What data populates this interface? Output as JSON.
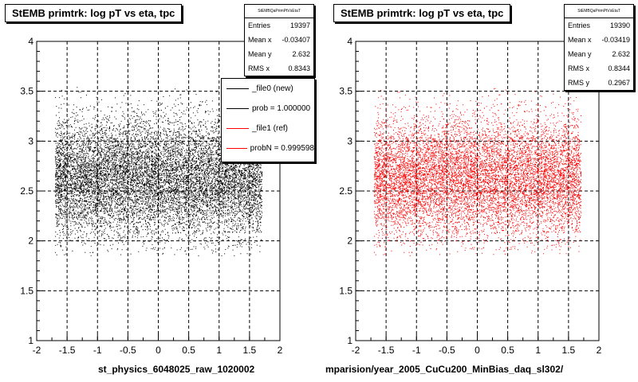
{
  "footer_text": "",
  "chart_data": [
    {
      "type": "scatter",
      "title": "StEMB primtrk: log pT vs eta, tpc",
      "xlabel": "st_physics_6048025_raw_1020002",
      "ylabel": "",
      "xlim": [
        -2,
        2
      ],
      "ylim": [
        1,
        4
      ],
      "xticks": [
        "-2",
        "-1.5",
        "-1",
        "-0.5",
        "0",
        "0.5",
        "1",
        "1.5",
        "2"
      ],
      "yticks": [
        "1",
        "1.5",
        "2",
        "2.5",
        "3",
        "3.5",
        "4"
      ],
      "grid": true,
      "color": "#000000",
      "stats": {
        "name": "StEMBQaPrimPtVsEtaT",
        "rows": [
          {
            "label": "Entries",
            "value": "19397"
          },
          {
            "label": "Mean x",
            "value": "-0.03407"
          },
          {
            "label": "Mean y",
            "value": "2.632"
          },
          {
            "label": "RMS x",
            "value": "0.8343"
          }
        ]
      },
      "distribution": {
        "x_range": [
          -1.7,
          1.7
        ],
        "y_mean": 2.632,
        "y_rms": 0.297,
        "y_range": [
          1.85,
          3.55
        ],
        "entries": 19397
      },
      "legend": [
        {
          "label": "_file0 (new)",
          "color": "#000000"
        },
        {
          "label": "prob = 1.000000",
          "color": "#000000"
        },
        {
          "label": "_file1 (ref)",
          "color": "#ff0000"
        },
        {
          "label": "probN = 0.999598",
          "color": "#ff0000"
        }
      ]
    },
    {
      "type": "scatter",
      "title": "StEMB primtrk: log pT vs eta, tpc",
      "xlabel": "mparision/year_2005_CuCu200_MinBias_daq_sl302/",
      "ylabel": "",
      "xlim": [
        -2,
        2
      ],
      "ylim": [
        1,
        4
      ],
      "xticks": [
        "-2",
        "-1.5",
        "-1",
        "-0.5",
        "0",
        "0.5",
        "1",
        "1.5",
        "2"
      ],
      "yticks": [
        "1",
        "1.5",
        "2",
        "2.5",
        "3",
        "3.5",
        "4"
      ],
      "grid": true,
      "color": "#ff0000",
      "stats": {
        "name": "StEMBQaPrimPtVsEtaT",
        "rows": [
          {
            "label": "Entries",
            "value": "19390"
          },
          {
            "label": "Mean x",
            "value": "-0.03419"
          },
          {
            "label": "Mean y",
            "value": "2.632"
          },
          {
            "label": "RMS x",
            "value": "0.8344"
          },
          {
            "label": "RMS y",
            "value": "0.2967"
          }
        ]
      },
      "distribution": {
        "x_range": [
          -1.7,
          1.7
        ],
        "y_mean": 2.632,
        "y_rms": 0.2967,
        "y_range": [
          1.85,
          3.55
        ],
        "entries": 19390
      }
    }
  ]
}
